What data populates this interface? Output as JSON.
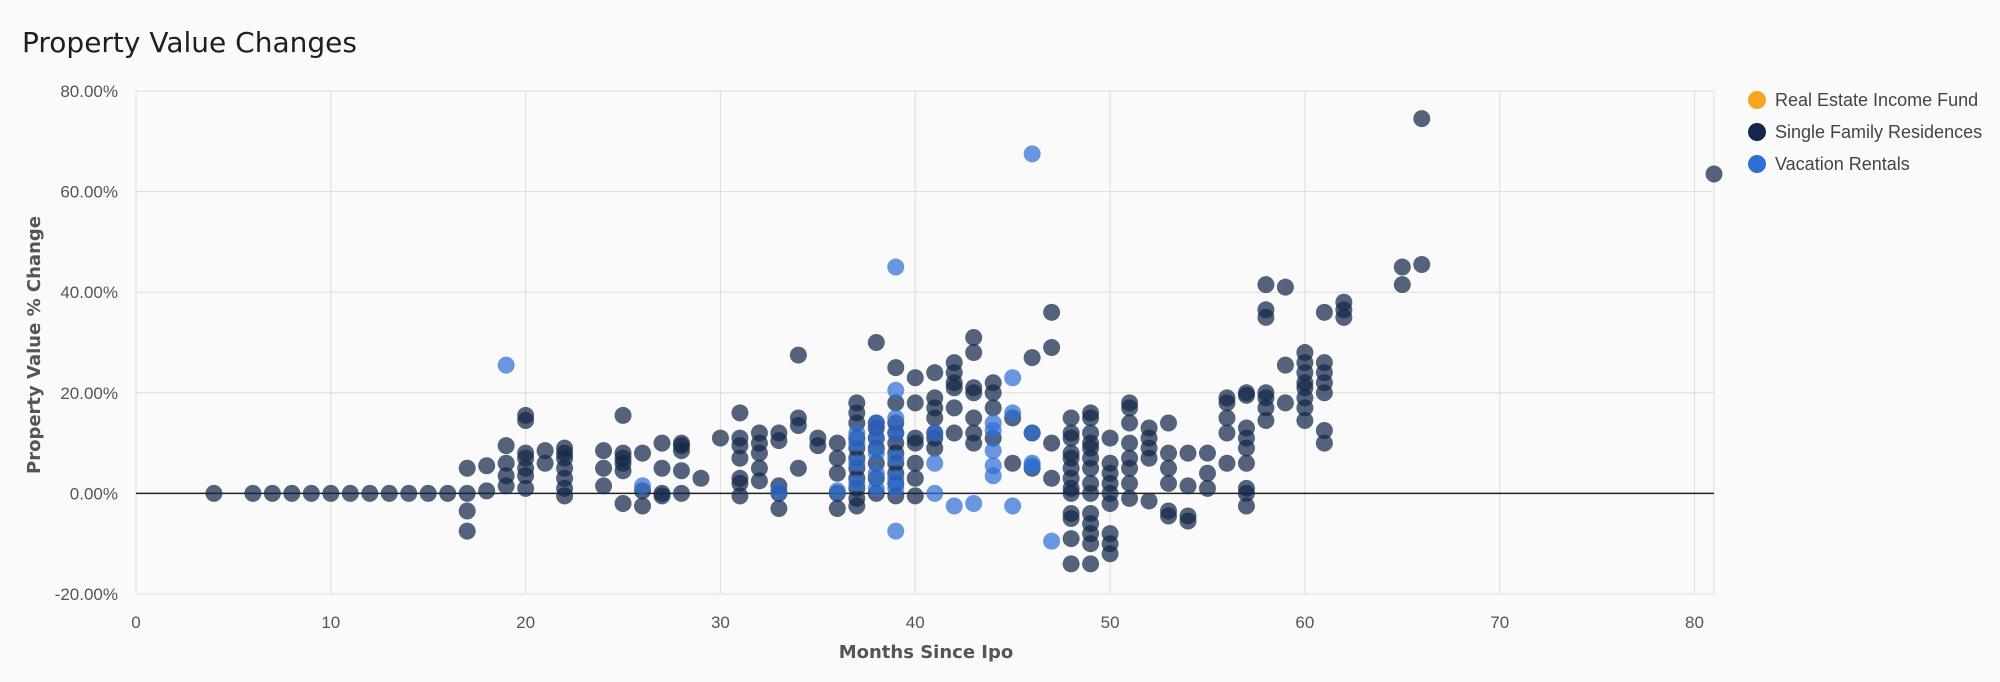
{
  "chart_data": {
    "type": "scatter",
    "title": "Property Value Changes",
    "xlabel": "Months Since Ipo",
    "ylabel": "Property Value % Change",
    "xlim": [
      0,
      81
    ],
    "ylim": [
      -20,
      80
    ],
    "x_ticks": [
      0,
      10,
      20,
      30,
      40,
      50,
      60,
      70,
      80
    ],
    "y_ticks": [
      -20,
      0,
      20,
      40,
      60,
      80
    ],
    "y_tick_labels": [
      "-20.00%",
      "0.00%",
      "20.00%",
      "40.00%",
      "60.00%",
      "80.00%"
    ],
    "grid": true,
    "legend_position": "top-right",
    "series": [
      {
        "name": "Real Estate Income Fund",
        "color": "#f5a623",
        "points": []
      },
      {
        "name": "Single Family Residences",
        "color": "#13284a",
        "points": [
          [
            4,
            0
          ],
          [
            6,
            0
          ],
          [
            7,
            0
          ],
          [
            8,
            0
          ],
          [
            9,
            0
          ],
          [
            10,
            0
          ],
          [
            11,
            0
          ],
          [
            12,
            0
          ],
          [
            13,
            0
          ],
          [
            14,
            0
          ],
          [
            15,
            0
          ],
          [
            16,
            0
          ],
          [
            17,
            0
          ],
          [
            17,
            -3.5
          ],
          [
            17,
            -7.5
          ],
          [
            17,
            5
          ],
          [
            18,
            0.5
          ],
          [
            18,
            5.5
          ],
          [
            19,
            1.5
          ],
          [
            19,
            3.5
          ],
          [
            19,
            6
          ],
          [
            19,
            9.5
          ],
          [
            20,
            1
          ],
          [
            20,
            3.5
          ],
          [
            20,
            5
          ],
          [
            20,
            7
          ],
          [
            20,
            8
          ],
          [
            20,
            14.5
          ],
          [
            20,
            15.5
          ],
          [
            21,
            6
          ],
          [
            21,
            8.5
          ],
          [
            22,
            -0.5
          ],
          [
            22,
            1
          ],
          [
            22,
            3
          ],
          [
            22,
            5
          ],
          [
            22,
            7
          ],
          [
            22,
            8
          ],
          [
            22,
            9
          ],
          [
            24,
            1.5
          ],
          [
            24,
            5
          ],
          [
            24,
            8.5
          ],
          [
            25,
            -2
          ],
          [
            25,
            4.5
          ],
          [
            25,
            6
          ],
          [
            25,
            7
          ],
          [
            25,
            8
          ],
          [
            25,
            15.5
          ],
          [
            26,
            -2.5
          ],
          [
            26,
            0.5
          ],
          [
            26,
            8
          ],
          [
            27,
            -0.5
          ],
          [
            27,
            0
          ],
          [
            27,
            5
          ],
          [
            27,
            10
          ],
          [
            28,
            0
          ],
          [
            28,
            4.5
          ],
          [
            28,
            8.5
          ],
          [
            28,
            9.5
          ],
          [
            28,
            10
          ],
          [
            29,
            3
          ],
          [
            30,
            11
          ],
          [
            31,
            -0.5
          ],
          [
            31,
            2
          ],
          [
            31,
            3
          ],
          [
            31,
            7
          ],
          [
            31,
            9.5
          ],
          [
            31,
            11
          ],
          [
            31,
            16
          ],
          [
            32,
            2.5
          ],
          [
            32,
            5
          ],
          [
            32,
            8
          ],
          [
            32,
            10
          ],
          [
            32,
            12
          ],
          [
            33,
            -3
          ],
          [
            33,
            0
          ],
          [
            33,
            1.5
          ],
          [
            33,
            10.5
          ],
          [
            33,
            12
          ],
          [
            34,
            5
          ],
          [
            34,
            13.5
          ],
          [
            34,
            15
          ],
          [
            34,
            27.5
          ],
          [
            35,
            9.5
          ],
          [
            35,
            11
          ],
          [
            36,
            -3
          ],
          [
            36,
            0
          ],
          [
            36,
            4
          ],
          [
            36,
            7
          ],
          [
            36,
            10
          ],
          [
            37,
            -2.5
          ],
          [
            37,
            -1
          ],
          [
            37,
            1
          ],
          [
            37,
            3
          ],
          [
            37,
            5
          ],
          [
            37,
            7
          ],
          [
            37,
            9
          ],
          [
            37,
            11
          ],
          [
            37,
            14
          ],
          [
            37,
            16
          ],
          [
            37,
            18
          ],
          [
            38,
            0
          ],
          [
            38,
            3
          ],
          [
            38,
            6
          ],
          [
            38,
            9
          ],
          [
            38,
            11
          ],
          [
            38,
            13
          ],
          [
            38,
            14
          ],
          [
            38,
            30
          ],
          [
            39,
            -0.5
          ],
          [
            39,
            2
          ],
          [
            39,
            4
          ],
          [
            39,
            6
          ],
          [
            39,
            8
          ],
          [
            39,
            10
          ],
          [
            39,
            12
          ],
          [
            39,
            14
          ],
          [
            39,
            18
          ],
          [
            39,
            25
          ],
          [
            40,
            -0.5
          ],
          [
            40,
            3
          ],
          [
            40,
            6
          ],
          [
            40,
            10
          ],
          [
            40,
            11
          ],
          [
            40,
            18
          ],
          [
            40,
            23
          ],
          [
            41,
            9
          ],
          [
            41,
            11
          ],
          [
            41,
            12
          ],
          [
            41,
            15
          ],
          [
            41,
            17
          ],
          [
            41,
            19
          ],
          [
            41,
            24
          ],
          [
            42,
            12
          ],
          [
            42,
            17
          ],
          [
            42,
            21
          ],
          [
            42,
            22
          ],
          [
            42,
            24
          ],
          [
            42,
            26
          ],
          [
            43,
            10
          ],
          [
            43,
            12
          ],
          [
            43,
            15
          ],
          [
            43,
            20
          ],
          [
            43,
            21
          ],
          [
            43,
            28
          ],
          [
            43,
            31
          ],
          [
            44,
            11
          ],
          [
            44,
            17
          ],
          [
            44,
            20
          ],
          [
            44,
            22
          ],
          [
            45,
            6
          ],
          [
            45,
            15
          ],
          [
            46,
            5
          ],
          [
            46,
            12
          ],
          [
            46,
            27
          ],
          [
            47,
            3
          ],
          [
            47,
            10
          ],
          [
            47,
            29
          ],
          [
            47,
            36
          ],
          [
            48,
            -14
          ],
          [
            48,
            -9
          ],
          [
            48,
            -5
          ],
          [
            48,
            -4
          ],
          [
            48,
            0
          ],
          [
            48,
            1
          ],
          [
            48,
            3
          ],
          [
            48,
            5
          ],
          [
            48,
            7
          ],
          [
            48,
            8
          ],
          [
            48,
            11
          ],
          [
            48,
            12
          ],
          [
            48,
            15
          ],
          [
            49,
            -14
          ],
          [
            49,
            -10
          ],
          [
            49,
            -8
          ],
          [
            49,
            -6
          ],
          [
            49,
            -4
          ],
          [
            49,
            0
          ],
          [
            49,
            2
          ],
          [
            49,
            5
          ],
          [
            49,
            7
          ],
          [
            49,
            9
          ],
          [
            49,
            10
          ],
          [
            49,
            12
          ],
          [
            49,
            15
          ],
          [
            49,
            16
          ],
          [
            50,
            -12
          ],
          [
            50,
            -10
          ],
          [
            50,
            -8
          ],
          [
            50,
            -2
          ],
          [
            50,
            0
          ],
          [
            50,
            2
          ],
          [
            50,
            4
          ],
          [
            50,
            6
          ],
          [
            50,
            11
          ],
          [
            51,
            -1
          ],
          [
            51,
            2
          ],
          [
            51,
            5
          ],
          [
            51,
            7
          ],
          [
            51,
            10
          ],
          [
            51,
            14
          ],
          [
            51,
            17
          ],
          [
            51,
            18
          ],
          [
            52,
            -1.5
          ],
          [
            52,
            7
          ],
          [
            52,
            9
          ],
          [
            52,
            11
          ],
          [
            52,
            13
          ],
          [
            53,
            -4.5
          ],
          [
            53,
            -3.5
          ],
          [
            53,
            2
          ],
          [
            53,
            5
          ],
          [
            53,
            8
          ],
          [
            53,
            14
          ],
          [
            54,
            -5.5
          ],
          [
            54,
            -4.5
          ],
          [
            54,
            1.5
          ],
          [
            54,
            8
          ],
          [
            55,
            1
          ],
          [
            55,
            4
          ],
          [
            55,
            8
          ],
          [
            56,
            6
          ],
          [
            56,
            12
          ],
          [
            56,
            15
          ],
          [
            56,
            18
          ],
          [
            56,
            19
          ],
          [
            57,
            -2.5
          ],
          [
            57,
            0
          ],
          [
            57,
            1
          ],
          [
            57,
            6
          ],
          [
            57,
            9
          ],
          [
            57,
            11
          ],
          [
            57,
            13
          ],
          [
            57,
            19.5
          ],
          [
            57,
            20
          ],
          [
            58,
            14.5
          ],
          [
            58,
            17
          ],
          [
            58,
            19
          ],
          [
            58,
            20
          ],
          [
            58,
            35
          ],
          [
            58,
            36.5
          ],
          [
            58,
            41.5
          ],
          [
            59,
            18
          ],
          [
            59,
            25.5
          ],
          [
            59,
            41
          ],
          [
            60,
            14.5
          ],
          [
            60,
            17
          ],
          [
            60,
            19
          ],
          [
            60,
            21
          ],
          [
            60,
            22
          ],
          [
            60,
            24
          ],
          [
            60,
            26
          ],
          [
            60,
            28
          ],
          [
            61,
            10
          ],
          [
            61,
            12.5
          ],
          [
            61,
            20
          ],
          [
            61,
            22
          ],
          [
            61,
            24
          ],
          [
            61,
            26
          ],
          [
            61,
            36
          ],
          [
            62,
            35
          ],
          [
            62,
            36.5
          ],
          [
            62,
            38
          ],
          [
            65,
            41.5
          ],
          [
            65,
            45
          ],
          [
            66,
            45.5
          ],
          [
            66,
            74.5
          ],
          [
            81,
            63.5
          ]
        ]
      },
      {
        "name": "Vacation Rentals",
        "color": "#2f6fd4",
        "points": [
          [
            19,
            25.5
          ],
          [
            26,
            1.5
          ],
          [
            33,
            0.5
          ],
          [
            36,
            0.5
          ],
          [
            37,
            2
          ],
          [
            37,
            6
          ],
          [
            37,
            10
          ],
          [
            37,
            12
          ],
          [
            38,
            1
          ],
          [
            38,
            4
          ],
          [
            38,
            8
          ],
          [
            38,
            11
          ],
          [
            38,
            14
          ],
          [
            39,
            -7.5
          ],
          [
            39,
            1
          ],
          [
            39,
            3
          ],
          [
            39,
            7
          ],
          [
            39,
            12
          ],
          [
            39,
            15
          ],
          [
            39,
            20.5
          ],
          [
            39,
            45
          ],
          [
            41,
            0
          ],
          [
            41,
            6
          ],
          [
            41,
            12
          ],
          [
            42,
            -2.5
          ],
          [
            43,
            -2
          ],
          [
            44,
            3.5
          ],
          [
            44,
            5.5
          ],
          [
            44,
            8.5
          ],
          [
            44,
            12.5
          ],
          [
            44,
            14
          ],
          [
            45,
            -2.5
          ],
          [
            45,
            16
          ],
          [
            45,
            23
          ],
          [
            46,
            5.5
          ],
          [
            46,
            6
          ],
          [
            46,
            12
          ],
          [
            46,
            67.5
          ],
          [
            47,
            -9.5
          ]
        ]
      }
    ]
  }
}
